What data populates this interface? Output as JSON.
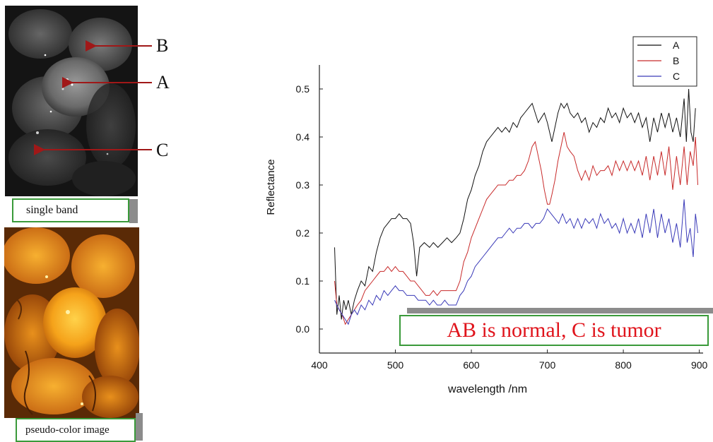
{
  "left_panel": {
    "top_image_caption": "single band",
    "bottom_image_caption": "pseudo-color image",
    "markers": [
      "B",
      "A",
      "C"
    ],
    "arrow_color": "#a01818"
  },
  "note": "AB is normal, C is tumor",
  "note_color": "#e0141c",
  "note_border_color": "#3a9a3a",
  "chart_data": {
    "type": "line",
    "title": "",
    "xlabel": "wavelength /nm",
    "ylabel": "Reflectance",
    "xlim": [
      400,
      905
    ],
    "ylim": [
      -0.05,
      0.55
    ],
    "x_ticks": [
      400,
      500,
      600,
      700,
      800,
      900
    ],
    "y_ticks": [
      "0.0",
      "0.1",
      "0.2",
      "0.3",
      "0.4",
      "0.5"
    ],
    "y_tick_values": [
      0.0,
      0.1,
      0.2,
      0.3,
      0.4,
      0.5
    ],
    "grid": false,
    "legend_position": "top-right",
    "series": [
      {
        "name": "A",
        "color": "#111111",
        "points": [
          [
            420,
            0.17
          ],
          [
            423,
            0.03
          ],
          [
            426,
            0.07
          ],
          [
            429,
            0.02
          ],
          [
            432,
            0.06
          ],
          [
            435,
            0.04
          ],
          [
            438,
            0.06
          ],
          [
            442,
            0.03
          ],
          [
            446,
            0.06
          ],
          [
            450,
            0.08
          ],
          [
            455,
            0.1
          ],
          [
            460,
            0.09
          ],
          [
            465,
            0.13
          ],
          [
            470,
            0.12
          ],
          [
            475,
            0.16
          ],
          [
            480,
            0.19
          ],
          [
            485,
            0.21
          ],
          [
            490,
            0.22
          ],
          [
            495,
            0.23
          ],
          [
            500,
            0.23
          ],
          [
            505,
            0.24
          ],
          [
            510,
            0.23
          ],
          [
            515,
            0.23
          ],
          [
            520,
            0.22
          ],
          [
            524,
            0.18
          ],
          [
            528,
            0.11
          ],
          [
            532,
            0.17
          ],
          [
            538,
            0.18
          ],
          [
            545,
            0.17
          ],
          [
            550,
            0.18
          ],
          [
            556,
            0.17
          ],
          [
            562,
            0.18
          ],
          [
            568,
            0.19
          ],
          [
            574,
            0.18
          ],
          [
            580,
            0.19
          ],
          [
            585,
            0.2
          ],
          [
            590,
            0.23
          ],
          [
            595,
            0.27
          ],
          [
            600,
            0.29
          ],
          [
            605,
            0.32
          ],
          [
            610,
            0.34
          ],
          [
            615,
            0.37
          ],
          [
            620,
            0.39
          ],
          [
            625,
            0.4
          ],
          [
            630,
            0.41
          ],
          [
            635,
            0.42
          ],
          [
            640,
            0.41
          ],
          [
            645,
            0.42
          ],
          [
            650,
            0.41
          ],
          [
            655,
            0.43
          ],
          [
            660,
            0.42
          ],
          [
            665,
            0.44
          ],
          [
            670,
            0.45
          ],
          [
            675,
            0.46
          ],
          [
            680,
            0.47
          ],
          [
            684,
            0.45
          ],
          [
            688,
            0.43
          ],
          [
            692,
            0.44
          ],
          [
            696,
            0.45
          ],
          [
            700,
            0.43
          ],
          [
            703,
            0.41
          ],
          [
            706,
            0.39
          ],
          [
            710,
            0.42
          ],
          [
            714,
            0.45
          ],
          [
            718,
            0.47
          ],
          [
            722,
            0.46
          ],
          [
            726,
            0.47
          ],
          [
            730,
            0.45
          ],
          [
            735,
            0.44
          ],
          [
            740,
            0.45
          ],
          [
            745,
            0.43
          ],
          [
            750,
            0.44
          ],
          [
            755,
            0.41
          ],
          [
            760,
            0.43
          ],
          [
            765,
            0.42
          ],
          [
            770,
            0.44
          ],
          [
            775,
            0.43
          ],
          [
            780,
            0.46
          ],
          [
            785,
            0.44
          ],
          [
            790,
            0.45
          ],
          [
            795,
            0.43
          ],
          [
            800,
            0.46
          ],
          [
            805,
            0.44
          ],
          [
            810,
            0.45
          ],
          [
            815,
            0.43
          ],
          [
            820,
            0.45
          ],
          [
            825,
            0.42
          ],
          [
            830,
            0.44
          ],
          [
            835,
            0.39
          ],
          [
            840,
            0.44
          ],
          [
            845,
            0.41
          ],
          [
            850,
            0.45
          ],
          [
            855,
            0.42
          ],
          [
            860,
            0.45
          ],
          [
            865,
            0.41
          ],
          [
            870,
            0.44
          ],
          [
            875,
            0.4
          ],
          [
            880,
            0.48
          ],
          [
            883,
            0.39
          ],
          [
            886,
            0.5
          ],
          [
            889,
            0.41
          ],
          [
            892,
            0.39
          ],
          [
            895,
            0.46
          ]
        ]
      },
      {
        "name": "B",
        "color": "#c82a2a",
        "points": [
          [
            420,
            0.1
          ],
          [
            423,
            0.05
          ],
          [
            426,
            0.04
          ],
          [
            430,
            0.03
          ],
          [
            434,
            0.01
          ],
          [
            438,
            0.02
          ],
          [
            442,
            0.03
          ],
          [
            446,
            0.04
          ],
          [
            450,
            0.05
          ],
          [
            455,
            0.06
          ],
          [
            460,
            0.08
          ],
          [
            465,
            0.09
          ],
          [
            470,
            0.1
          ],
          [
            475,
            0.11
          ],
          [
            480,
            0.12
          ],
          [
            485,
            0.12
          ],
          [
            490,
            0.13
          ],
          [
            495,
            0.12
          ],
          [
            500,
            0.13
          ],
          [
            505,
            0.12
          ],
          [
            510,
            0.12
          ],
          [
            515,
            0.11
          ],
          [
            520,
            0.1
          ],
          [
            525,
            0.1
          ],
          [
            530,
            0.09
          ],
          [
            535,
            0.08
          ],
          [
            540,
            0.07
          ],
          [
            545,
            0.07
          ],
          [
            550,
            0.08
          ],
          [
            555,
            0.07
          ],
          [
            560,
            0.08
          ],
          [
            565,
            0.08
          ],
          [
            570,
            0.08
          ],
          [
            575,
            0.08
          ],
          [
            580,
            0.08
          ],
          [
            585,
            0.1
          ],
          [
            590,
            0.14
          ],
          [
            595,
            0.16
          ],
          [
            600,
            0.19
          ],
          [
            605,
            0.21
          ],
          [
            610,
            0.23
          ],
          [
            615,
            0.25
          ],
          [
            620,
            0.27
          ],
          [
            625,
            0.28
          ],
          [
            630,
            0.29
          ],
          [
            635,
            0.3
          ],
          [
            640,
            0.3
          ],
          [
            645,
            0.3
          ],
          [
            650,
            0.31
          ],
          [
            655,
            0.31
          ],
          [
            660,
            0.32
          ],
          [
            665,
            0.32
          ],
          [
            670,
            0.33
          ],
          [
            675,
            0.35
          ],
          [
            680,
            0.38
          ],
          [
            684,
            0.39
          ],
          [
            688,
            0.36
          ],
          [
            692,
            0.33
          ],
          [
            696,
            0.29
          ],
          [
            700,
            0.26
          ],
          [
            703,
            0.26
          ],
          [
            706,
            0.28
          ],
          [
            710,
            0.31
          ],
          [
            714,
            0.35
          ],
          [
            718,
            0.38
          ],
          [
            722,
            0.41
          ],
          [
            726,
            0.38
          ],
          [
            730,
            0.37
          ],
          [
            735,
            0.36
          ],
          [
            740,
            0.33
          ],
          [
            745,
            0.31
          ],
          [
            750,
            0.33
          ],
          [
            755,
            0.31
          ],
          [
            760,
            0.34
          ],
          [
            765,
            0.32
          ],
          [
            770,
            0.33
          ],
          [
            775,
            0.33
          ],
          [
            780,
            0.34
          ],
          [
            785,
            0.32
          ],
          [
            790,
            0.35
          ],
          [
            795,
            0.33
          ],
          [
            800,
            0.35
          ],
          [
            805,
            0.33
          ],
          [
            810,
            0.35
          ],
          [
            815,
            0.33
          ],
          [
            820,
            0.35
          ],
          [
            825,
            0.32
          ],
          [
            830,
            0.36
          ],
          [
            835,
            0.31
          ],
          [
            840,
            0.36
          ],
          [
            845,
            0.32
          ],
          [
            850,
            0.37
          ],
          [
            855,
            0.32
          ],
          [
            860,
            0.38
          ],
          [
            865,
            0.29
          ],
          [
            870,
            0.36
          ],
          [
            875,
            0.3
          ],
          [
            880,
            0.38
          ],
          [
            884,
            0.3
          ],
          [
            888,
            0.37
          ],
          [
            892,
            0.34
          ],
          [
            895,
            0.4
          ],
          [
            898,
            0.3
          ]
        ]
      },
      {
        "name": "C",
        "color": "#3a3ab8",
        "points": [
          [
            420,
            0.06
          ],
          [
            423,
            0.05
          ],
          [
            426,
            0.04
          ],
          [
            430,
            0.03
          ],
          [
            434,
            0.02
          ],
          [
            438,
            0.01
          ],
          [
            442,
            0.03
          ],
          [
            446,
            0.04
          ],
          [
            450,
            0.03
          ],
          [
            455,
            0.05
          ],
          [
            460,
            0.04
          ],
          [
            465,
            0.06
          ],
          [
            470,
            0.05
          ],
          [
            475,
            0.07
          ],
          [
            480,
            0.06
          ],
          [
            485,
            0.08
          ],
          [
            490,
            0.07
          ],
          [
            495,
            0.08
          ],
          [
            500,
            0.09
          ],
          [
            505,
            0.08
          ],
          [
            510,
            0.08
          ],
          [
            515,
            0.07
          ],
          [
            520,
            0.07
          ],
          [
            525,
            0.07
          ],
          [
            530,
            0.06
          ],
          [
            535,
            0.06
          ],
          [
            540,
            0.06
          ],
          [
            545,
            0.05
          ],
          [
            550,
            0.06
          ],
          [
            555,
            0.05
          ],
          [
            560,
            0.05
          ],
          [
            565,
            0.06
          ],
          [
            570,
            0.05
          ],
          [
            575,
            0.05
          ],
          [
            580,
            0.05
          ],
          [
            585,
            0.07
          ],
          [
            590,
            0.08
          ],
          [
            595,
            0.1
          ],
          [
            600,
            0.11
          ],
          [
            605,
            0.13
          ],
          [
            610,
            0.14
          ],
          [
            615,
            0.15
          ],
          [
            620,
            0.16
          ],
          [
            625,
            0.17
          ],
          [
            630,
            0.18
          ],
          [
            635,
            0.19
          ],
          [
            640,
            0.19
          ],
          [
            645,
            0.2
          ],
          [
            650,
            0.21
          ],
          [
            655,
            0.2
          ],
          [
            660,
            0.21
          ],
          [
            665,
            0.21
          ],
          [
            670,
            0.22
          ],
          [
            675,
            0.22
          ],
          [
            680,
            0.21
          ],
          [
            685,
            0.22
          ],
          [
            690,
            0.22
          ],
          [
            695,
            0.23
          ],
          [
            700,
            0.25
          ],
          [
            705,
            0.24
          ],
          [
            710,
            0.23
          ],
          [
            715,
            0.22
          ],
          [
            720,
            0.24
          ],
          [
            725,
            0.22
          ],
          [
            730,
            0.23
          ],
          [
            735,
            0.21
          ],
          [
            740,
            0.23
          ],
          [
            745,
            0.21
          ],
          [
            750,
            0.23
          ],
          [
            755,
            0.22
          ],
          [
            760,
            0.23
          ],
          [
            765,
            0.21
          ],
          [
            770,
            0.24
          ],
          [
            775,
            0.22
          ],
          [
            780,
            0.23
          ],
          [
            785,
            0.21
          ],
          [
            790,
            0.22
          ],
          [
            795,
            0.2
          ],
          [
            800,
            0.23
          ],
          [
            805,
            0.2
          ],
          [
            810,
            0.22
          ],
          [
            815,
            0.2
          ],
          [
            820,
            0.23
          ],
          [
            825,
            0.19
          ],
          [
            830,
            0.24
          ],
          [
            835,
            0.2
          ],
          [
            840,
            0.25
          ],
          [
            845,
            0.19
          ],
          [
            850,
            0.24
          ],
          [
            855,
            0.2
          ],
          [
            860,
            0.23
          ],
          [
            865,
            0.18
          ],
          [
            870,
            0.22
          ],
          [
            875,
            0.17
          ],
          [
            880,
            0.27
          ],
          [
            884,
            0.18
          ],
          [
            888,
            0.21
          ],
          [
            892,
            0.15
          ],
          [
            895,
            0.24
          ],
          [
            898,
            0.2
          ]
        ]
      }
    ]
  }
}
